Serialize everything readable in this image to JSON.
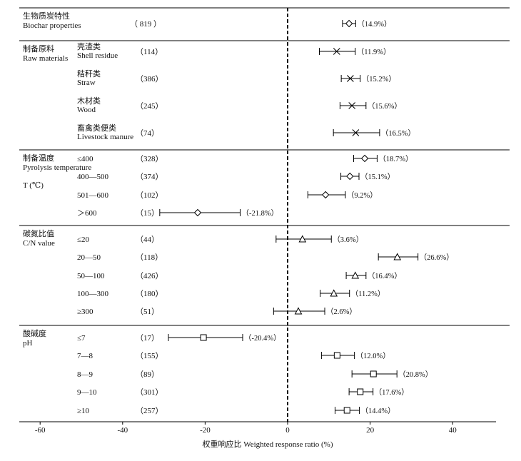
{
  "chart_data": {
    "type": "forest",
    "xlabel": "权重响应比 Weighted response ratio (%)",
    "xlim": [
      -60,
      50
    ],
    "xticks": [
      -60,
      -40,
      -20,
      0,
      20,
      40
    ],
    "reference_line": 0,
    "groups": [
      {
        "label_cn": "生物质炭特性",
        "label_en": "Biochar properties",
        "rows": [
          {
            "sub_cn": "",
            "sub_en": "",
            "n": "（ 819 ）",
            "value": 14.9,
            "ci": [
              13.3,
              16.5
            ],
            "marker": "diamond",
            "label": "（14.9%）"
          }
        ]
      },
      {
        "label_cn": "制备原料",
        "label_en": "Raw materials",
        "rows": [
          {
            "sub_cn": "壳渣类",
            "sub_en": "Shell residue",
            "n": "（114）",
            "value": 11.9,
            "ci": [
              7.7,
              16.4
            ],
            "marker": "cross",
            "label": "（11.9%）"
          },
          {
            "sub_cn": "秸秆类",
            "sub_en": "Straw",
            "n": "（386）",
            "value": 15.2,
            "ci": [
              13.0,
              17.6
            ],
            "marker": "cross",
            "label": "（15.2%）"
          },
          {
            "sub_cn": "木材类",
            "sub_en": "Wood",
            "n": "（245）",
            "value": 15.6,
            "ci": [
              12.7,
              19.0
            ],
            "marker": "cross",
            "label": "（15.6%）"
          },
          {
            "sub_cn": "畜禽类便类",
            "sub_en": "Livestock manure",
            "n": "（74）",
            "value": 16.5,
            "ci": [
              11.1,
              22.3
            ],
            "marker": "cross",
            "label": "（16.5%）"
          }
        ]
      },
      {
        "label_cn": "制备温度",
        "label_en": "Pyrolysis temperature",
        "label_en2": "T (℃)",
        "rows": [
          {
            "sub_cn": "≤400",
            "sub_en": "",
            "n": "（328）",
            "value": 18.7,
            "ci": [
              16.0,
              21.7
            ],
            "marker": "diamond",
            "label": "（18.7%）"
          },
          {
            "sub_cn": "400—500",
            "sub_en": "",
            "n": "（374）",
            "value": 15.1,
            "ci": [
              12.9,
              17.3
            ],
            "marker": "diamond",
            "label": "（15.1%）"
          },
          {
            "sub_cn": "501—600",
            "sub_en": "",
            "n": "（102）",
            "value": 9.2,
            "ci": [
              4.9,
              14.0
            ],
            "marker": "diamond",
            "label": "（9.2%）"
          },
          {
            "sub_cn": "＞600",
            "sub_en": "",
            "n": "（15）",
            "value": -21.8,
            "ci": [
              -31.0,
              -11.5
            ],
            "marker": "diamond",
            "label": "（-21.8%）"
          }
        ]
      },
      {
        "label_cn": "碳氮比值",
        "label_en": "C/N value",
        "rows": [
          {
            "sub_cn": "≤20",
            "sub_en": "",
            "n": "（44）",
            "value": 3.6,
            "ci": [
              -2.8,
              10.6
            ],
            "marker": "triangle",
            "label": "（3.6%）"
          },
          {
            "sub_cn": "20—50",
            "sub_en": "",
            "n": "（118）",
            "value": 26.6,
            "ci": [
              22.0,
              31.6
            ],
            "marker": "triangle",
            "label": "（26.6%）"
          },
          {
            "sub_cn": "50—100",
            "sub_en": "",
            "n": "（426）",
            "value": 16.4,
            "ci": [
              14.2,
              19.0
            ],
            "marker": "triangle",
            "label": "（16.4%）"
          },
          {
            "sub_cn": "100—300",
            "sub_en": "",
            "n": "（180）",
            "value": 11.2,
            "ci": [
              7.9,
              15.0
            ],
            "marker": "triangle",
            "label": "（11.2%）"
          },
          {
            "sub_cn": "≥300",
            "sub_en": "",
            "n": "（51）",
            "value": 2.6,
            "ci": [
              -3.4,
              9.0
            ],
            "marker": "triangle",
            "label": "（2.6%）"
          }
        ]
      },
      {
        "label_cn": "酸碱度",
        "label_en": "pH",
        "rows": [
          {
            "sub_cn": "≤7",
            "sub_en": "",
            "n": "（17）",
            "value": -20.4,
            "ci": [
              -28.9,
              -10.9
            ],
            "marker": "square",
            "label": "（-20.4%）"
          },
          {
            "sub_cn": "7—8",
            "sub_en": "",
            "n": "（155）",
            "value": 12.0,
            "ci": [
              8.2,
              16.2
            ],
            "marker": "square",
            "label": "（12.0%）"
          },
          {
            "sub_cn": "8—9",
            "sub_en": "",
            "n": "（89）",
            "value": 20.8,
            "ci": [
              15.6,
              26.5
            ],
            "marker": "square",
            "label": "（20.8%）"
          },
          {
            "sub_cn": "9—10",
            "sub_en": "",
            "n": "（301）",
            "value": 17.6,
            "ci": [
              14.9,
              20.7
            ],
            "marker": "square",
            "label": "（17.6%）"
          },
          {
            "sub_cn": "≥10",
            "sub_en": "",
            "n": "（257）",
            "value": 14.4,
            "ci": [
              11.5,
              17.4
            ],
            "marker": "square",
            "label": "（14.4%）"
          }
        ]
      }
    ]
  }
}
